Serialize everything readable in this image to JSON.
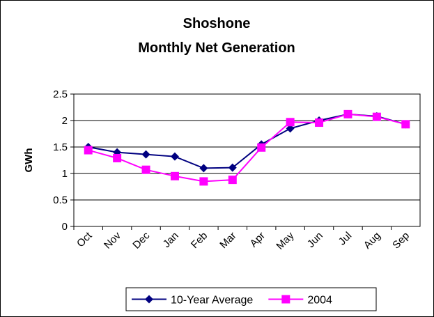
{
  "chart_data": {
    "type": "line",
    "title": [
      "Shoshone",
      "Monthly Net Generation"
    ],
    "ylabel": "GWh",
    "categories": [
      "Oct",
      "Nov",
      "Dec",
      "Jan",
      "Feb",
      "Mar",
      "Apr",
      "May",
      "Jun",
      "Jul",
      "Aug",
      "Sep"
    ],
    "series": [
      {
        "name": "10-Year Average",
        "color": "#000080",
        "marker": "diamond",
        "values": [
          1.5,
          1.4,
          1.36,
          1.32,
          1.1,
          1.11,
          1.55,
          1.85,
          2.0,
          2.12,
          2.08,
          1.93
        ]
      },
      {
        "name": "2004",
        "color": "#ff00ff",
        "marker": "square",
        "values": [
          1.44,
          1.29,
          1.07,
          0.95,
          0.85,
          0.88,
          1.49,
          1.97,
          1.96,
          2.12,
          2.07,
          1.93
        ]
      }
    ],
    "ylim": [
      0,
      2.5
    ],
    "yticks": [
      0,
      0.5,
      1,
      1.5,
      2,
      2.5
    ],
    "grid": true,
    "legend": "bottom"
  }
}
